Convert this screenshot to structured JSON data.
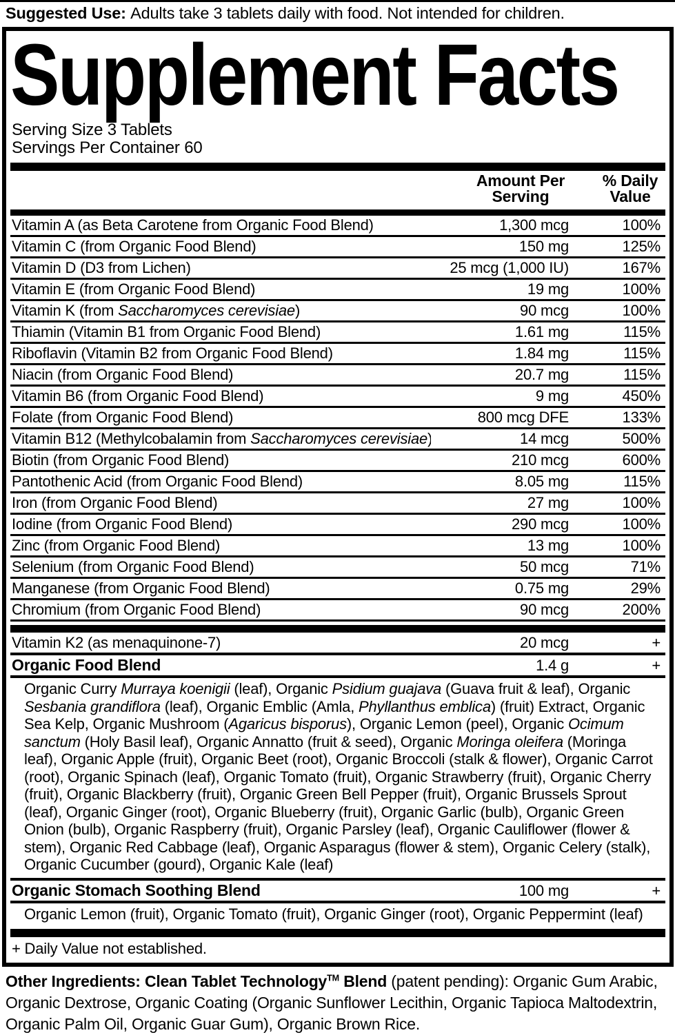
{
  "suggested_use": {
    "segments": [
      {
        "t": "Suggested Use: ",
        "b": true
      },
      {
        "t": "Adults take 3 tablets daily with food. Not intended for children."
      }
    ]
  },
  "panel": {
    "title": "Supplement Facts",
    "serving_size": "Serving Size 3 Tablets",
    "servings_per_container": "Servings Per Container 60",
    "columns": {
      "amount_line1": "Amount Per",
      "amount_line2": "Serving",
      "dv_line1": "% Daily",
      "dv_line2": "Value"
    },
    "nutrients": [
      {
        "name": [
          {
            "t": "Vitamin A (as Beta Carotene from Organic Food Blend)"
          }
        ],
        "amount": "1,300 mcg",
        "dv": "100%"
      },
      {
        "name": [
          {
            "t": "Vitamin C (from Organic Food Blend)"
          }
        ],
        "amount": "150 mg",
        "dv": "125%"
      },
      {
        "name": [
          {
            "t": "Vitamin D (D3 from Lichen)"
          }
        ],
        "amount": "25 mcg (1,000 IU)",
        "dv": "167%"
      },
      {
        "name": [
          {
            "t": "Vitamin E (from Organic Food Blend)"
          }
        ],
        "amount": "19 mg",
        "dv": "100%"
      },
      {
        "name": [
          {
            "t": "Vitamin K (from "
          },
          {
            "t": "Saccharomyces cerevisiae",
            "i": true
          },
          {
            "t": ")"
          }
        ],
        "amount": "90 mcg",
        "dv": "100%"
      },
      {
        "name": [
          {
            "t": "Thiamin (Vitamin B1 from Organic Food Blend)"
          }
        ],
        "amount": "1.61 mg",
        "dv": "115%"
      },
      {
        "name": [
          {
            "t": "Riboflavin (Vitamin B2 from Organic Food Blend)"
          }
        ],
        "amount": "1.84 mg",
        "dv": "115%"
      },
      {
        "name": [
          {
            "t": "Niacin (from Organic Food Blend)"
          }
        ],
        "amount": "20.7 mg",
        "dv": "115%"
      },
      {
        "name": [
          {
            "t": "Vitamin B6 (from Organic Food Blend)"
          }
        ],
        "amount": "9 mg",
        "dv": "450%"
      },
      {
        "name": [
          {
            "t": "Folate (from Organic Food Blend)"
          }
        ],
        "amount": "800 mcg DFE",
        "dv": "133%"
      },
      {
        "name": [
          {
            "t": "Vitamin B12 (Methylcobalamin from "
          },
          {
            "t": "Saccharomyces cerevisiae",
            "i": true
          },
          {
            "t": ")"
          }
        ],
        "amount": "14 mcg",
        "dv": "500%"
      },
      {
        "name": [
          {
            "t": "Biotin (from Organic Food Blend)"
          }
        ],
        "amount": "210 mcg",
        "dv": "600%"
      },
      {
        "name": [
          {
            "t": "Pantothenic Acid (from Organic Food Blend)"
          }
        ],
        "amount": "8.05 mg",
        "dv": "115%"
      },
      {
        "name": [
          {
            "t": "Iron (from Organic Food Blend)"
          }
        ],
        "amount": "27 mg",
        "dv": "100%"
      },
      {
        "name": [
          {
            "t": "Iodine (from Organic Food Blend)"
          }
        ],
        "amount": "290 mcg",
        "dv": "100%"
      },
      {
        "name": [
          {
            "t": "Zinc (from Organic Food Blend)"
          }
        ],
        "amount": "13 mg",
        "dv": "100%"
      },
      {
        "name": [
          {
            "t": "Selenium (from Organic Food Blend)"
          }
        ],
        "amount": "50 mcg",
        "dv": "71%"
      },
      {
        "name": [
          {
            "t": "Manganese (from Organic Food Blend)"
          }
        ],
        "amount": "0.75 mg",
        "dv": "29%"
      },
      {
        "name": [
          {
            "t": "Chromium (from Organic Food Blend)"
          }
        ],
        "amount": "90 mcg",
        "dv": "200%"
      }
    ],
    "supplemental": [
      {
        "name": [
          {
            "t": "Vitamin K2 (as menaquinone-7)"
          }
        ],
        "bold": false,
        "amount": "20 mcg",
        "dv": "+"
      },
      {
        "name": [
          {
            "t": "Organic Food Blend"
          }
        ],
        "bold": true,
        "amount": "1.4 g",
        "dv": "+",
        "description": [
          {
            "t": "Organic Curry "
          },
          {
            "t": "Murraya koenigii",
            "i": true
          },
          {
            "t": " (leaf), Organic "
          },
          {
            "t": "Psidium guajava",
            "i": true
          },
          {
            "t": " (Guava fruit & leaf), Organic "
          },
          {
            "t": "Sesbania grandiflora",
            "i": true
          },
          {
            "t": " (leaf), Organic Emblic (Amla, "
          },
          {
            "t": "Phyllanthus emblica",
            "i": true
          },
          {
            "t": ") (fruit) Extract, Organic Sea Kelp, Organic Mushroom ("
          },
          {
            "t": "Agaricus bisporus",
            "i": true
          },
          {
            "t": "), Organic Lemon (peel), Organic "
          },
          {
            "t": "Ocimum sanctum",
            "i": true
          },
          {
            "t": " (Holy Basil leaf), Organic Annatto (fruit & seed), Organic "
          },
          {
            "t": "Moringa oleifera",
            "i": true
          },
          {
            "t": " (Moringa leaf), Organic Apple (fruit), Organic Beet (root), Organic Broccoli (stalk & flower), Organic Carrot (root), Organic Spinach (leaf), Organic Tomato (fruit), Organic Strawberry (fruit), Organic Cherry (fruit), Organic Blackberry (fruit), Organic Green Bell Pepper (fruit), Organic Brussels Sprout (leaf), Organic Ginger (root), Organic Blueberry (fruit), Organic Garlic (bulb), Organic Green Onion (bulb), Organic Raspberry (fruit), Organic Parsley (leaf), Organic Cauliflower (flower & stem), Organic Red Cabbage (leaf), Organic Asparagus (flower & stem), Organic Celery (stalk), Organic Cucumber (gourd), Organic Kale (leaf)"
          }
        ]
      },
      {
        "name": [
          {
            "t": "Organic Stomach Soothing Blend"
          }
        ],
        "bold": true,
        "amount": "100 mg",
        "dv": "+",
        "description": [
          {
            "t": "Organic Lemon (fruit), Organic Tomato (fruit), Organic Ginger (root), Organic Peppermint (leaf)"
          }
        ]
      }
    ],
    "footnote": "+ Daily Value not established."
  },
  "other_ingredients": {
    "segments": [
      {
        "t": "Other Ingredients: Clean Tablet Technology",
        "b": true
      },
      {
        "t": "TM",
        "b": true,
        "sup": true
      },
      {
        "t": " Blend",
        "b": true
      },
      {
        "t": " (patent pending): Organic Gum Arabic, Organic Dextrose, Organic Coating (Organic Sunflower Lecithin, Organic Tapioca Maltodextrin, Organic Palm Oil, Organic Guar Gum), Organic Brown Rice."
      }
    ]
  }
}
